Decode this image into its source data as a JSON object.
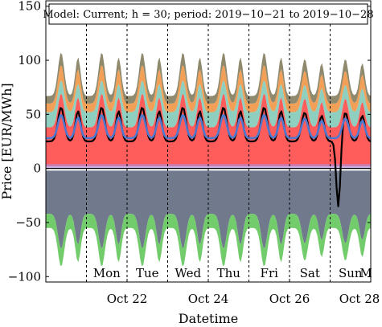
{
  "chart_data": {
    "type": "area",
    "title": "Model: Current; h = 30; period: 2019−10−21 to 2019−10−28",
    "xlabel": "Datetime",
    "ylabel": "Price [EUR/MWh]",
    "ylim": [
      -105,
      155
    ],
    "yticks": [
      -100,
      -50,
      0,
      50,
      100,
      150
    ],
    "xlim_days": [
      "2019-10-20",
      "2019-10-28"
    ],
    "xticks": [
      {
        "date": "2019-10-22",
        "label": "Oct 22"
      },
      {
        "date": "2019-10-24",
        "label": "Oct 24"
      },
      {
        "date": "2019-10-26",
        "label": "Oct 26"
      },
      {
        "date": "2019-10-28",
        "label": "Oct 28"
      }
    ],
    "day_boundaries": [
      "2019-10-21",
      "2019-10-22",
      "2019-10-23",
      "2019-10-24",
      "2019-10-25",
      "2019-10-26",
      "2019-10-27",
      "2019-10-28"
    ],
    "day_labels": [
      "Mon",
      "Tue",
      "Wed",
      "Thu",
      "Fri",
      "Sat",
      "Sun",
      "M"
    ],
    "stacked_positive_upper_bounds": [
      {
        "color": "#ff5c5c",
        "peak": 73,
        "trough": 38
      },
      {
        "color": "#8ecfc0",
        "peak": 85,
        "trough": 52
      },
      {
        "color": "#f2a057",
        "peak": 100,
        "trough": 60
      },
      {
        "color": "#8f8a6e",
        "peak": 112,
        "trough": 67
      }
    ],
    "stacked_negative_lower_bounds": [
      {
        "color": "#707a8c",
        "peak": -78,
        "trough": -42
      },
      {
        "color": "#73cc6b",
        "peak": -95,
        "trough": -55
      }
    ],
    "lines": [
      {
        "color": "#000000",
        "description_values": {
          "daily_peak": 60,
          "daily_trough": 25,
          "min_value": -35
        }
      },
      {
        "color": "#4f79ce",
        "description_values": {
          "daily_peak": 52,
          "daily_trough": 28
        }
      }
    ],
    "hline": 0,
    "grid": false,
    "colors": {
      "background": "#ffffff",
      "axis": "#000000"
    }
  }
}
